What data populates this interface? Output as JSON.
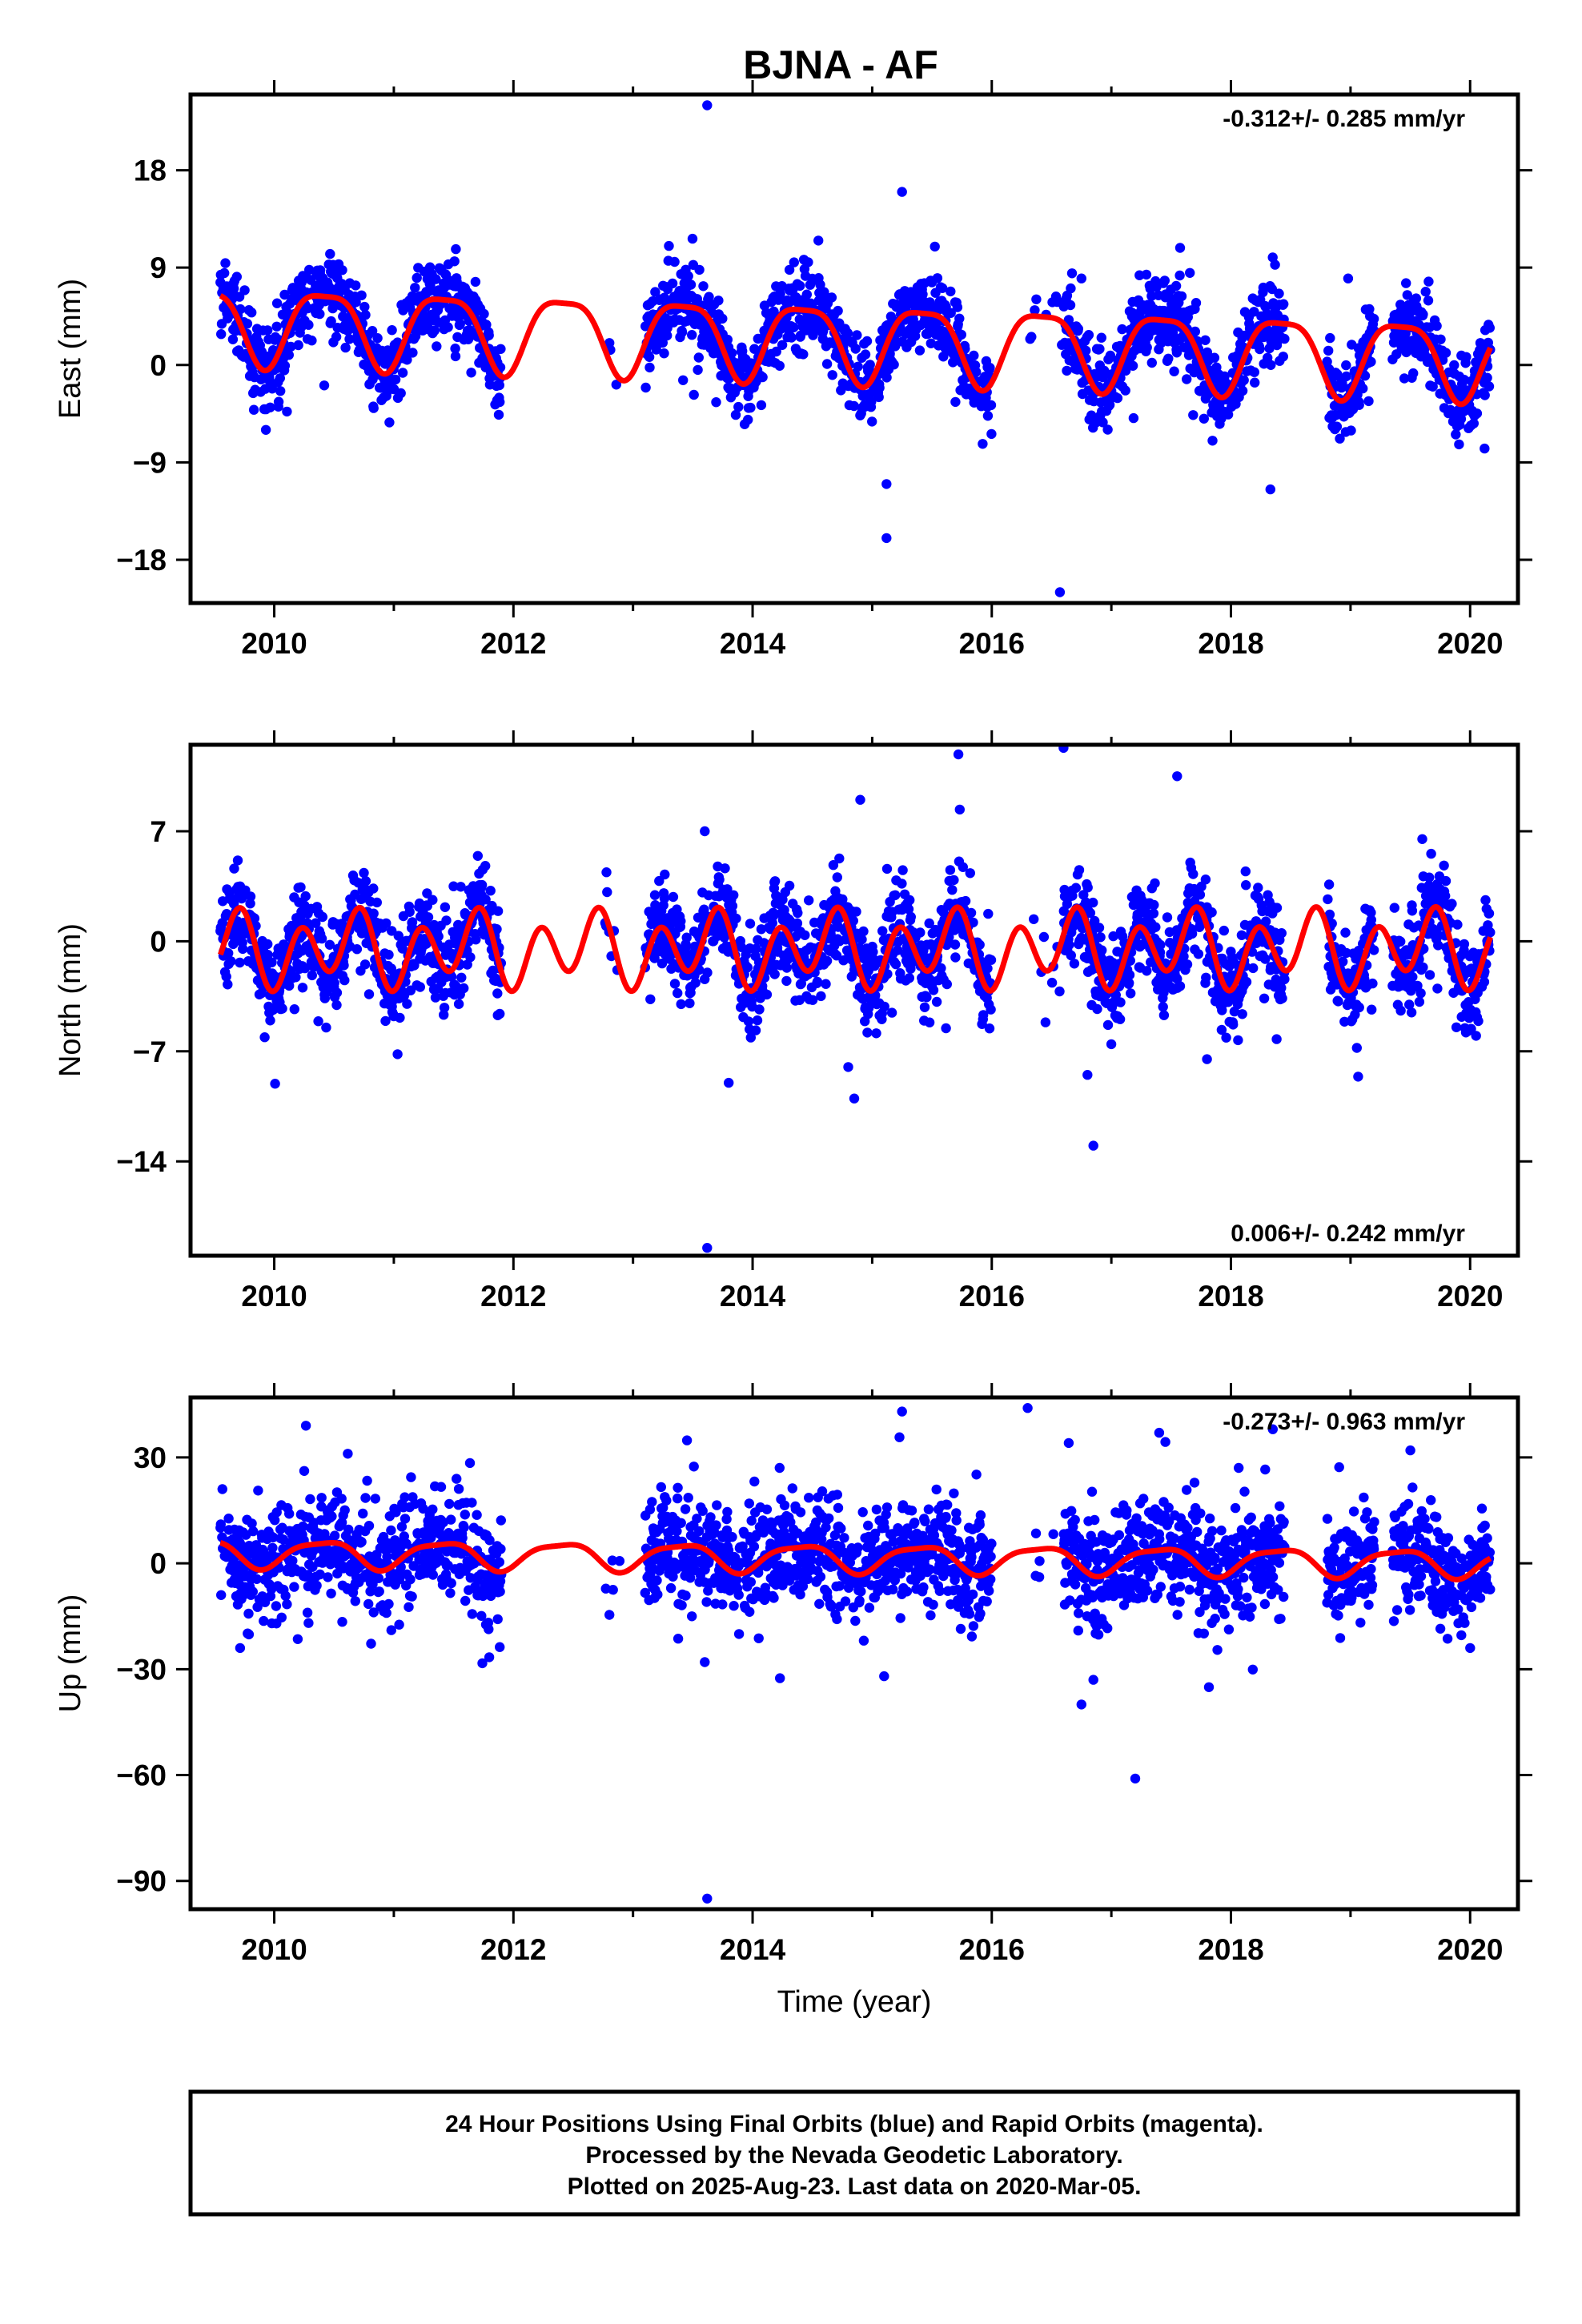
{
  "title": "BJNA - AF",
  "footer": {
    "lines": [
      "24 Hour Positions Using Final Orbits (blue) and Rapid Orbits (magenta).",
      "Processed by the Nevada Geodetic Laboratory.",
      "Plotted on 2025-Aug-23. Last data on 2020-Mar-05."
    ]
  },
  "colors": {
    "data_points": "#0000ff",
    "model_fit": "#ff0000",
    "frame": "#000000"
  },
  "chart_data": [
    {
      "type": "scatter",
      "component": "east",
      "ylabel": "East (mm)",
      "xlabel": "",
      "xlim": [
        2009.3,
        2020.4
      ],
      "ylim": [
        -22,
        25
      ],
      "xticks": [
        2010,
        2012,
        2014,
        2016,
        2018,
        2020
      ],
      "xtick_labels": [
        "2010",
        "2012",
        "2014",
        "2016",
        "2018",
        "2020"
      ],
      "yticks": [
        -18,
        -9,
        0,
        9,
        18
      ],
      "ytick_labels": [
        "−18",
        "−9",
        "0",
        "9",
        "18"
      ],
      "rate_text": "-0.312+/- 0.285 mm/yr",
      "rate_position": "top-right",
      "model": {
        "offset": 2.3,
        "trend_per_year": -0.312,
        "annual_amp": 3.5,
        "annual_phase": 0.17,
        "semiannual_amp": 0.9,
        "semiannual_phase": 0.05
      },
      "data_gaps": [
        [
          2011.9,
          2012.75
        ],
        [
          2012.9,
          2013.1
        ],
        [
          2016.0,
          2016.3
        ],
        [
          2018.45,
          2018.8
        ],
        [
          2019.2,
          2019.35
        ],
        [
          2020.2,
          2021
        ]
      ],
      "sparse_ranges": [
        [
          2012.75,
          2012.9
        ],
        [
          2016.3,
          2016.6
        ]
      ],
      "scatter_sd": 1.8,
      "outliers": [
        {
          "x": 2013.62,
          "y": 24
        },
        {
          "x": 2015.25,
          "y": 16
        },
        {
          "x": 2015.12,
          "y": -16
        },
        {
          "x": 2016.57,
          "y": -21
        },
        {
          "x": 2015.12,
          "y": -11
        },
        {
          "x": 2018.33,
          "y": -11.5
        },
        {
          "x": 2013.3,
          "y": 11
        },
        {
          "x": 2014.55,
          "y": 11.5
        },
        {
          "x": 2018.98,
          "y": 8
        },
        {
          "x": 2016.75,
          "y": 8
        },
        {
          "x": 2009.93,
          "y": -6
        }
      ]
    },
    {
      "type": "scatter",
      "component": "north",
      "ylabel": "North (mm)",
      "xlabel": "",
      "xlim": [
        2009.3,
        2020.4
      ],
      "ylim": [
        -20,
        12.5
      ],
      "xticks": [
        2010,
        2012,
        2014,
        2016,
        2018,
        2020
      ],
      "xtick_labels": [
        "2010",
        "2012",
        "2014",
        "2016",
        "2018",
        "2020"
      ],
      "yticks": [
        -14,
        -7,
        0,
        7
      ],
      "ytick_labels": [
        "−14",
        "−7",
        "0",
        "7"
      ],
      "rate_text": "0.006+/- 0.242 mm/yr",
      "rate_position": "bottom-right",
      "model": {
        "offset": -0.5,
        "trend_per_year": 0.006,
        "annual_amp": 0.9,
        "annual_phase": 0.35,
        "semiannual_amp": 2.0,
        "semiannual_phase": 0.1
      },
      "data_gaps": [
        [
          2011.9,
          2012.75
        ],
        [
          2012.9,
          2013.1
        ],
        [
          2016.0,
          2016.3
        ],
        [
          2018.45,
          2018.8
        ],
        [
          2019.2,
          2019.35
        ],
        [
          2020.2,
          2021
        ]
      ],
      "sparse_ranges": [
        [
          2012.75,
          2012.9
        ],
        [
          2016.3,
          2016.6
        ]
      ],
      "scatter_sd": 1.5,
      "outliers": [
        {
          "x": 2013.62,
          "y": -19.5
        },
        {
          "x": 2016.6,
          "y": 12.3
        },
        {
          "x": 2016.85,
          "y": -13
        },
        {
          "x": 2014.85,
          "y": -10
        },
        {
          "x": 2013.8,
          "y": -9
        },
        {
          "x": 2017.55,
          "y": 10.5
        },
        {
          "x": 2019.6,
          "y": 6.5
        },
        {
          "x": 2013.6,
          "y": 7
        },
        {
          "x": 2014.8,
          "y": -8
        },
        {
          "x": 2016.8,
          "y": -8.5
        },
        {
          "x": 2017.8,
          "y": -7.5
        },
        {
          "x": 2014.9,
          "y": 9
        }
      ]
    },
    {
      "type": "scatter",
      "component": "up",
      "ylabel": "Up (mm)",
      "xlabel": "Time (year)",
      "xlim": [
        2009.3,
        2020.4
      ],
      "ylim": [
        -98,
        47
      ],
      "xticks": [
        2010,
        2012,
        2014,
        2016,
        2018,
        2020
      ],
      "xtick_labels": [
        "2010",
        "2012",
        "2014",
        "2016",
        "2018",
        "2020"
      ],
      "yticks": [
        -90,
        -60,
        -30,
        0,
        30
      ],
      "ytick_labels": [
        "−90",
        "−60",
        "−30",
        "0",
        "30"
      ],
      "rate_text": "-0.273+/- 0.963 mm/yr",
      "rate_position": "top-right",
      "model": {
        "offset": 1.5,
        "trend_per_year": -0.273,
        "annual_amp": 3.8,
        "annual_phase": 0.15,
        "semiannual_amp": 1.0,
        "semiannual_phase": 0.0
      },
      "data_gaps": [
        [
          2011.9,
          2012.75
        ],
        [
          2012.9,
          2013.1
        ],
        [
          2016.0,
          2016.3
        ],
        [
          2018.45,
          2018.8
        ],
        [
          2019.2,
          2019.35
        ],
        [
          2020.2,
          2021
        ]
      ],
      "sparse_ranges": [
        [
          2012.75,
          2012.9
        ],
        [
          2016.3,
          2016.6
        ]
      ],
      "scatter_sd": 7.5,
      "outliers": [
        {
          "x": 2013.62,
          "y": -95
        },
        {
          "x": 2017.2,
          "y": -61
        },
        {
          "x": 2016.3,
          "y": 44
        },
        {
          "x": 2015.25,
          "y": 43
        },
        {
          "x": 2018.35,
          "y": 38
        },
        {
          "x": 2016.75,
          "y": -40
        },
        {
          "x": 2015.1,
          "y": -32
        },
        {
          "x": 2019.5,
          "y": 32
        },
        {
          "x": 2020.0,
          "y": -24
        },
        {
          "x": 2017.4,
          "y": 37
        },
        {
          "x": 2013.6,
          "y": -28
        },
        {
          "x": 2016.85,
          "y": -33
        }
      ]
    }
  ]
}
